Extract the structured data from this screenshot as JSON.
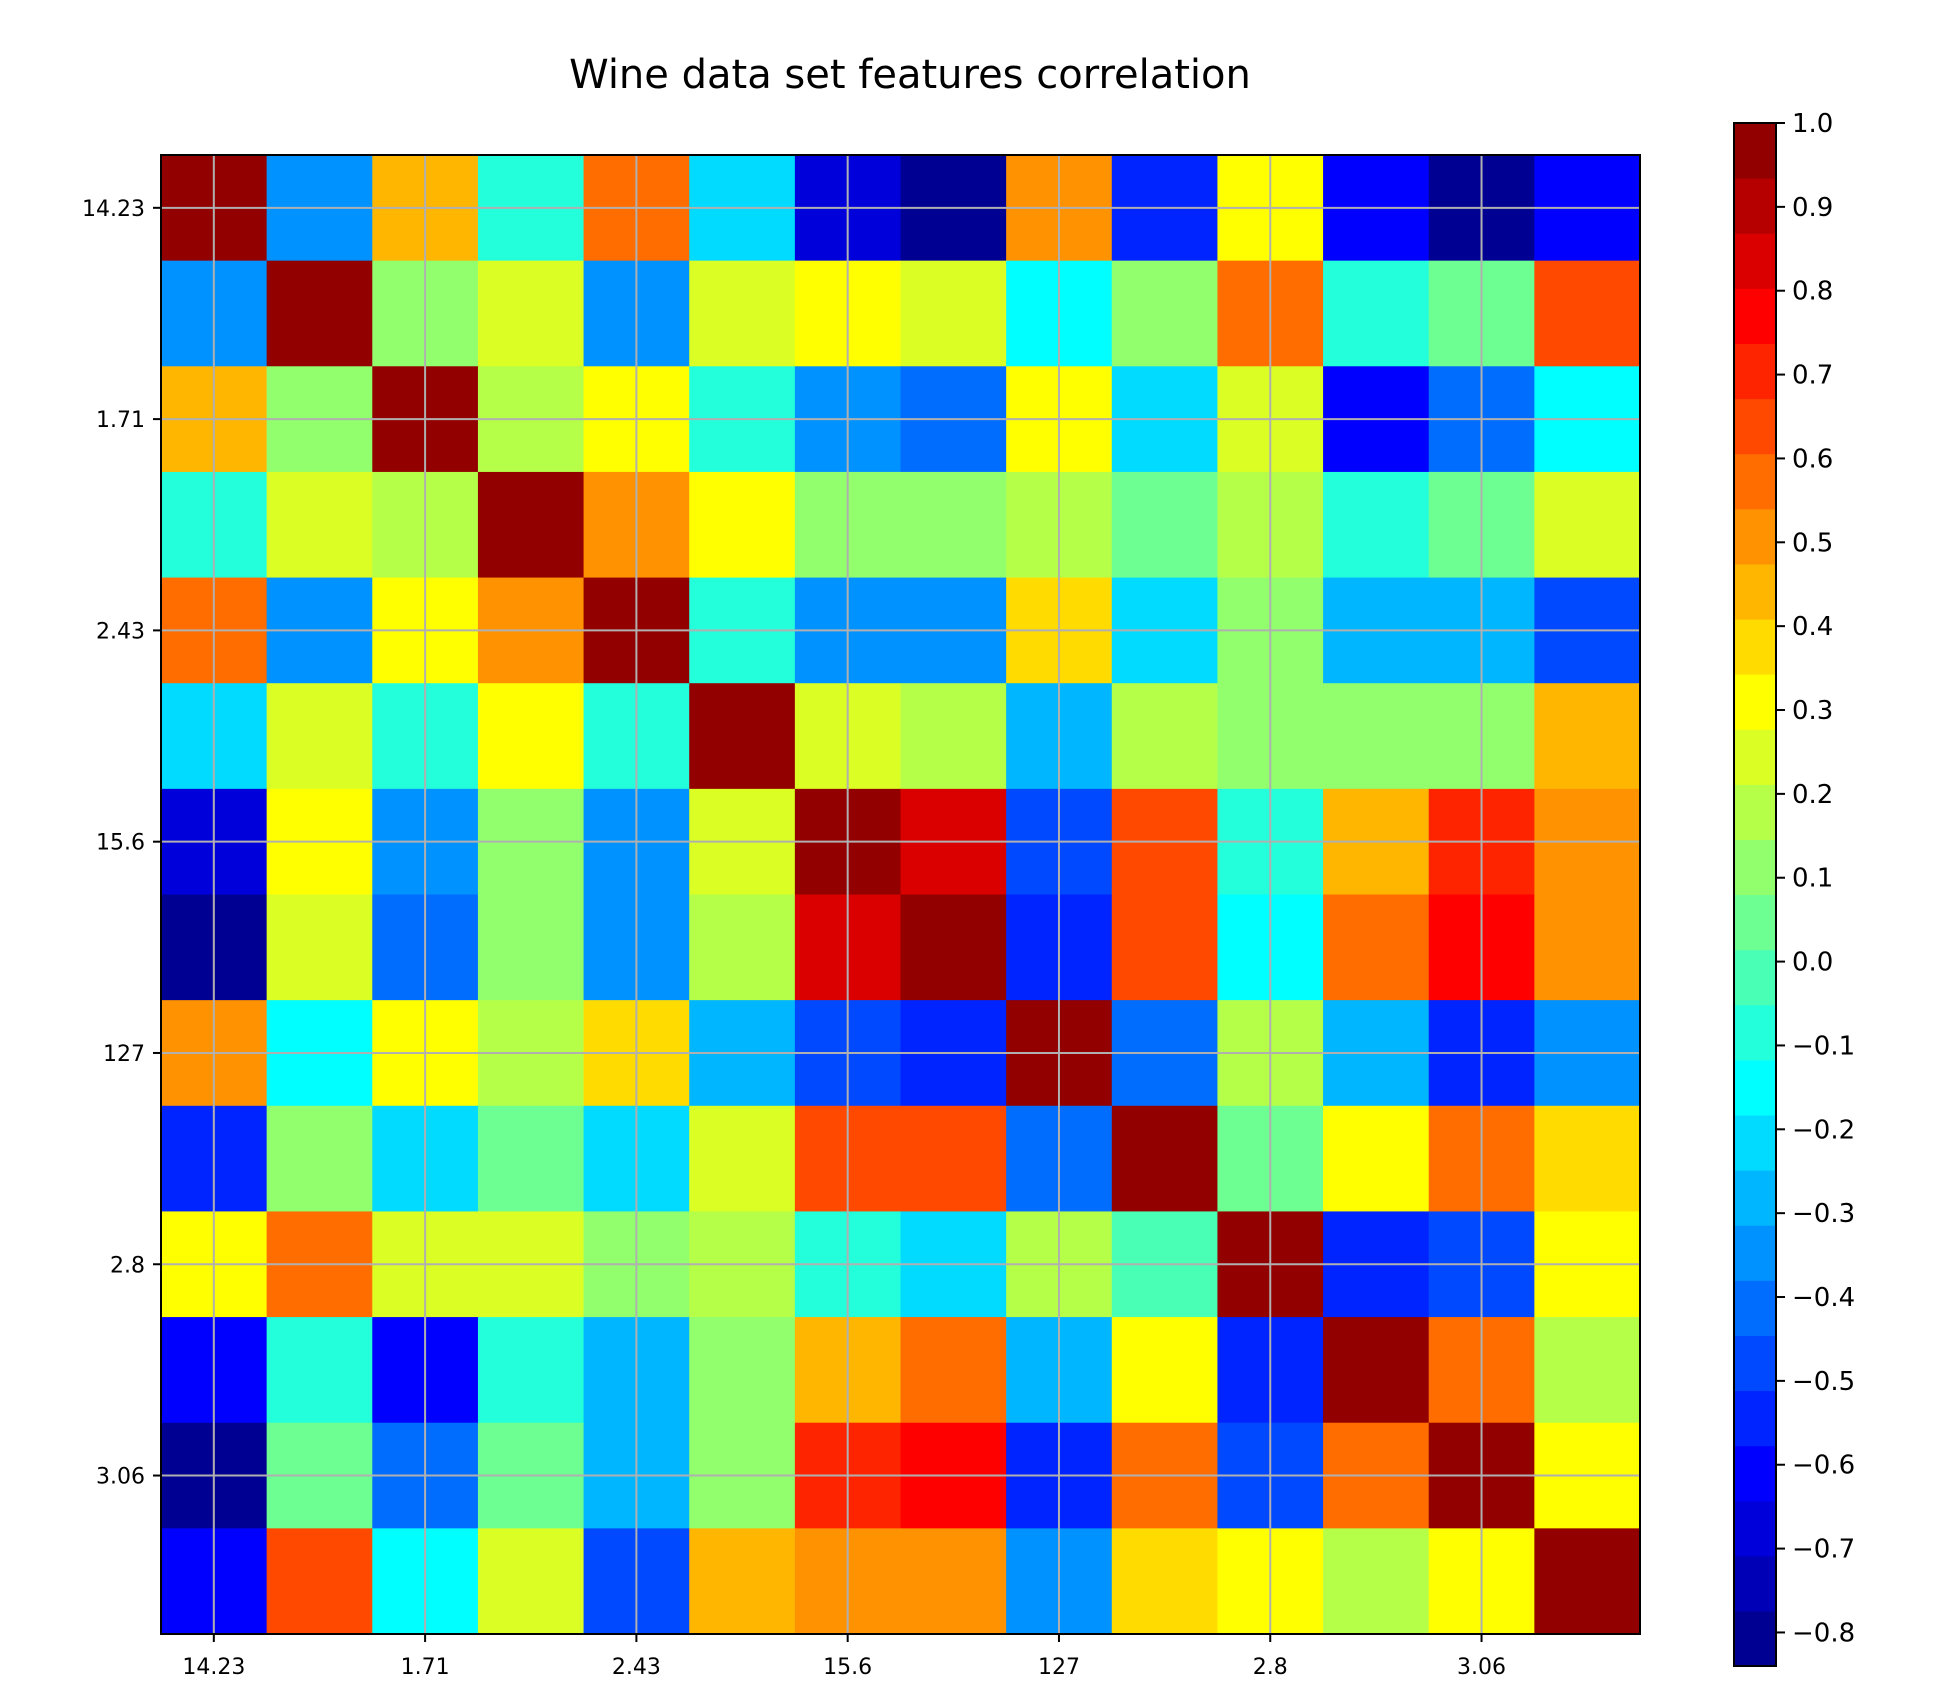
{
  "chart_data": {
    "type": "heatmap",
    "title": "Wine data set features correlation",
    "xlabel": "",
    "ylabel": "",
    "tick_labels": [
      "14.23",
      "1.71",
      "2.43",
      "15.6",
      "127",
      "2.8",
      "3.06"
    ],
    "tick_indices": [
      0,
      2,
      4,
      6,
      8,
      10,
      12
    ],
    "grid": true,
    "colormap": "jet",
    "colorbar": {
      "vmin": -0.84,
      "vmax": 1.0,
      "levels": 28,
      "ticks": [
        1.0,
        0.9,
        0.8,
        0.7,
        0.6,
        0.5,
        0.4,
        0.3,
        0.2,
        0.1,
        0.0,
        -0.1,
        -0.2,
        -0.3,
        -0.4,
        -0.5,
        -0.6,
        -0.7,
        -0.8
      ],
      "tick_labels": [
        "1.0",
        "0.9",
        "0.8",
        "0.7",
        "0.6",
        "0.5",
        "0.4",
        "0.3",
        "0.2",
        "0.1",
        "0.0",
        "−0.1",
        "−0.2",
        "−0.3",
        "−0.4",
        "−0.5",
        "−0.6",
        "−0.7",
        "−0.8"
      ]
    },
    "matrix": [
      [
        1.0,
        -0.32,
        0.41,
        -0.08,
        0.55,
        -0.2,
        -0.68,
        -0.82,
        0.48,
        -0.52,
        0.28,
        -0.59,
        -0.8,
        -0.6
      ],
      [
        -0.32,
        1.0,
        0.11,
        0.22,
        -0.32,
        0.22,
        0.28,
        0.24,
        -0.12,
        0.11,
        0.55,
        -0.08,
        0.06,
        0.64
      ],
      [
        0.41,
        0.11,
        1.0,
        0.19,
        0.28,
        -0.08,
        -0.32,
        -0.4,
        0.3,
        -0.2,
        0.23,
        -0.58,
        -0.39,
        -0.18
      ],
      [
        -0.08,
        0.22,
        0.19,
        1.0,
        0.48,
        0.3,
        0.12,
        0.12,
        0.16,
        0.07,
        0.21,
        -0.07,
        0.04,
        0.23
      ],
      [
        0.55,
        -0.32,
        0.28,
        0.48,
        1.0,
        -0.07,
        -0.32,
        -0.32,
        0.36,
        -0.2,
        0.08,
        -0.26,
        -0.26,
        -0.45
      ],
      [
        -0.2,
        0.22,
        -0.08,
        0.3,
        -0.07,
        1.0,
        0.23,
        0.2,
        -0.25,
        0.21,
        0.14,
        0.1,
        0.1,
        0.42
      ],
      [
        -0.68,
        0.3,
        -0.32,
        0.12,
        -0.32,
        0.23,
        1.0,
        0.86,
        -0.46,
        0.61,
        -0.08,
        0.42,
        0.71,
        0.5
      ],
      [
        -0.82,
        0.24,
        -0.4,
        0.12,
        -0.32,
        0.2,
        0.86,
        1.0,
        -0.54,
        0.65,
        -0.18,
        0.55,
        0.78,
        0.49
      ],
      [
        0.48,
        -0.12,
        0.3,
        0.16,
        0.36,
        -0.26,
        -0.46,
        -0.54,
        1.0,
        -0.4,
        0.16,
        -0.27,
        -0.52,
        -0.33
      ],
      [
        -0.52,
        0.14,
        -0.2,
        0.04,
        -0.2,
        0.23,
        0.61,
        0.65,
        -0.4,
        1.0,
        0.02,
        0.3,
        0.55,
        0.36
      ],
      [
        0.28,
        0.55,
        0.23,
        0.22,
        0.08,
        0.16,
        -0.07,
        -0.2,
        0.16,
        -0.03,
        1.0,
        -0.53,
        -0.46,
        0.28
      ],
      [
        -0.59,
        -0.08,
        -0.58,
        -0.07,
        -0.26,
        0.1,
        0.42,
        0.55,
        -0.27,
        0.3,
        -0.53,
        1.0,
        0.54,
        0.21
      ],
      [
        -0.8,
        0.06,
        -0.39,
        0.04,
        -0.26,
        0.1,
        0.71,
        0.78,
        -0.52,
        0.55,
        -0.46,
        0.54,
        1.0,
        0.28
      ],
      [
        -0.6,
        0.64,
        -0.18,
        0.23,
        -0.45,
        0.42,
        0.5,
        0.49,
        -0.33,
        0.36,
        0.28,
        0.21,
        0.28,
        1.0
      ]
    ]
  }
}
